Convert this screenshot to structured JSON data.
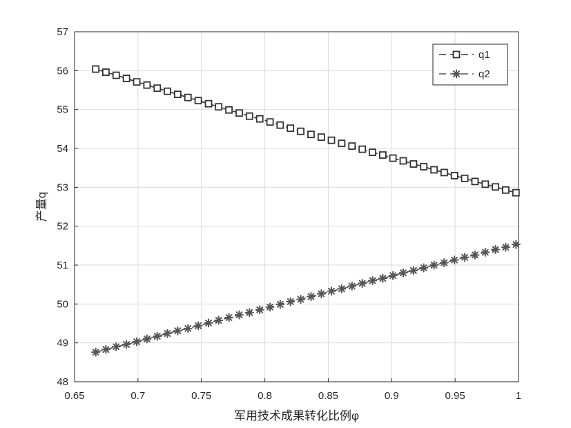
{
  "chart_data": {
    "type": "line",
    "xlabel": "军用技术成果转化比例φ",
    "ylabel": "产量q",
    "xlim": [
      0.65,
      1
    ],
    "ylim": [
      48,
      57
    ],
    "xticks": [
      0.65,
      0.7,
      0.75,
      0.8,
      0.85,
      0.9,
      0.95,
      1
    ],
    "xtick_labels": [
      "0.65",
      "0.7",
      "0.75",
      "0.8",
      "0.85",
      "0.9",
      "0.95",
      "1"
    ],
    "yticks": [
      48,
      49,
      50,
      51,
      52,
      53,
      54,
      55,
      56,
      57
    ],
    "ytick_labels": [
      "48",
      "49",
      "50",
      "51",
      "52",
      "53",
      "54",
      "55",
      "56",
      "57"
    ],
    "grid": true,
    "legend_position": "top-right",
    "x": [
      0.6667,
      0.6747,
      0.6828,
      0.6909,
      0.699,
      0.7071,
      0.7152,
      0.7232,
      0.7313,
      0.7394,
      0.7475,
      0.7556,
      0.7636,
      0.7717,
      0.7798,
      0.7879,
      0.796,
      0.8041,
      0.8121,
      0.8202,
      0.8283,
      0.8364,
      0.8445,
      0.8525,
      0.8606,
      0.8687,
      0.8768,
      0.8849,
      0.893,
      0.901,
      0.9091,
      0.9172,
      0.9253,
      0.9334,
      0.9414,
      0.9495,
      0.9576,
      0.9657,
      0.9738,
      0.9818,
      0.9899,
      0.998
    ],
    "series": [
      {
        "name": "q1",
        "marker": "square",
        "color": "#333333",
        "values": [
          56.04,
          55.96,
          55.88,
          55.8,
          55.71,
          55.63,
          55.55,
          55.47,
          55.39,
          55.31,
          55.23,
          55.15,
          55.07,
          54.99,
          54.91,
          54.83,
          54.76,
          54.68,
          54.6,
          54.52,
          54.44,
          54.36,
          54.29,
          54.21,
          54.13,
          54.06,
          53.98,
          53.9,
          53.83,
          53.75,
          53.68,
          53.6,
          53.53,
          53.45,
          53.38,
          53.3,
          53.23,
          53.15,
          53.08,
          53.01,
          52.93,
          52.86
        ]
      },
      {
        "name": "q2",
        "marker": "asterisk",
        "color": "#555555",
        "values": [
          48.76,
          48.83,
          48.9,
          48.96,
          49.03,
          49.1,
          49.17,
          49.24,
          49.31,
          49.37,
          49.44,
          49.51,
          49.58,
          49.65,
          49.72,
          49.78,
          49.85,
          49.92,
          49.99,
          50.06,
          50.12,
          50.19,
          50.26,
          50.33,
          50.39,
          50.46,
          50.53,
          50.6,
          50.66,
          50.73,
          50.8,
          50.86,
          50.93,
          51.0,
          51.06,
          51.13,
          51.2,
          51.26,
          51.33,
          51.4,
          51.46,
          51.53
        ]
      }
    ]
  }
}
